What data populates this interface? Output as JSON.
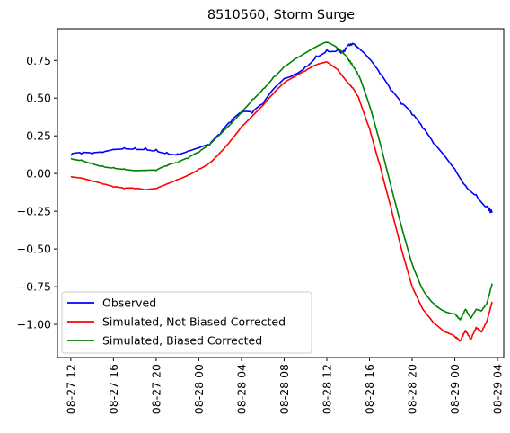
{
  "chart_data": {
    "type": "line",
    "title": "8510560, Storm Surge",
    "xlabel": "",
    "ylabel": "",
    "xlim": [
      "08-27 10:45",
      "08-29 04:35"
    ],
    "ylim": [
      -1.22,
      0.96
    ],
    "x_ticks": [
      "08-27 12",
      "08-27 16",
      "08-27 20",
      "08-28 00",
      "08-28 04",
      "08-28 08",
      "08-28 12",
      "08-28 16",
      "08-28 20",
      "08-29 00",
      "08-29 04"
    ],
    "y_ticks": [
      0.75,
      0.5,
      0.25,
      0.0,
      -0.25,
      -0.5,
      -0.75,
      -1.0
    ],
    "y_tick_labels": [
      "0.75",
      "0.50",
      "0.25",
      "0.00",
      "−0.25",
      "−0.50",
      "−0.75",
      "−1.00"
    ],
    "grid": false,
    "legend_position": "lower-left",
    "x_format": "time, hours since 08-27 00:00",
    "series": [
      {
        "name": "Observed",
        "color": "#0000ff",
        "x": [
          12,
          13,
          14,
          15,
          16,
          17,
          18,
          19,
          20,
          21,
          22,
          23,
          24,
          25,
          26,
          27,
          28,
          29,
          30,
          31,
          32,
          33,
          34,
          35,
          36,
          37,
          37.5,
          38,
          38.5,
          39,
          39.5,
          40,
          41,
          42,
          43,
          44,
          45,
          46,
          47,
          48,
          49,
          50,
          51,
          51.5
        ],
        "y": [
          0.12,
          0.13,
          0.13,
          0.14,
          0.16,
          0.17,
          0.17,
          0.17,
          0.16,
          0.14,
          0.13,
          0.15,
          0.17,
          0.19,
          0.26,
          0.34,
          0.4,
          0.4,
          0.46,
          0.56,
          0.63,
          0.66,
          0.71,
          0.78,
          0.82,
          0.82,
          0.8,
          0.85,
          0.86,
          0.83,
          0.8,
          0.76,
          0.66,
          0.55,
          0.46,
          0.39,
          0.3,
          0.2,
          0.12,
          0.03,
          -0.08,
          -0.14,
          -0.22,
          -0.26
        ]
      },
      {
        "name": "Simulated, Not Biased Corrected",
        "color": "#ff0000",
        "x": [
          12,
          13,
          14,
          15,
          16,
          17,
          18,
          19,
          20,
          21,
          22,
          23,
          24,
          25,
          26,
          27,
          28,
          29,
          30,
          31,
          32,
          33,
          34,
          35,
          36,
          37,
          38,
          38.5,
          39,
          40,
          41,
          42,
          43,
          44,
          45,
          46,
          47,
          48,
          48.5,
          49,
          49.5,
          50,
          50.5,
          51,
          51.5
        ],
        "y": [
          -0.02,
          -0.03,
          -0.05,
          -0.07,
          -0.09,
          -0.1,
          -0.1,
          -0.11,
          -0.1,
          -0.07,
          -0.04,
          -0.01,
          0.03,
          0.07,
          0.14,
          0.22,
          0.31,
          0.38,
          0.45,
          0.53,
          0.6,
          0.64,
          0.68,
          0.72,
          0.74,
          0.69,
          0.6,
          0.56,
          0.5,
          0.3,
          0.05,
          -0.22,
          -0.5,
          -0.75,
          -0.9,
          -0.99,
          -1.05,
          -1.08,
          -1.11,
          -1.04,
          -1.1,
          -1.02,
          -1.05,
          -0.98,
          -0.85
        ]
      },
      {
        "name": "Simulated, Biased Corrected",
        "color": "#008000",
        "x": [
          12,
          13,
          14,
          15,
          16,
          17,
          18,
          19,
          20,
          21,
          22,
          23,
          24,
          25,
          26,
          27,
          28,
          29,
          30,
          31,
          32,
          33,
          34,
          35,
          36,
          37,
          38,
          38.5,
          39,
          40,
          41,
          42,
          43,
          44,
          45,
          46,
          47,
          48,
          48.5,
          49,
          49.5,
          50,
          50.5,
          51,
          51.5
        ],
        "y": [
          0.1,
          0.09,
          0.07,
          0.05,
          0.04,
          0.03,
          0.02,
          0.02,
          0.02,
          0.05,
          0.07,
          0.1,
          0.14,
          0.19,
          0.26,
          0.33,
          0.41,
          0.49,
          0.56,
          0.64,
          0.71,
          0.76,
          0.8,
          0.84,
          0.87,
          0.83,
          0.76,
          0.71,
          0.65,
          0.45,
          0.2,
          -0.08,
          -0.35,
          -0.6,
          -0.77,
          -0.86,
          -0.91,
          -0.93,
          -0.97,
          -0.9,
          -0.96,
          -0.9,
          -0.91,
          -0.86,
          -0.73
        ]
      }
    ]
  }
}
